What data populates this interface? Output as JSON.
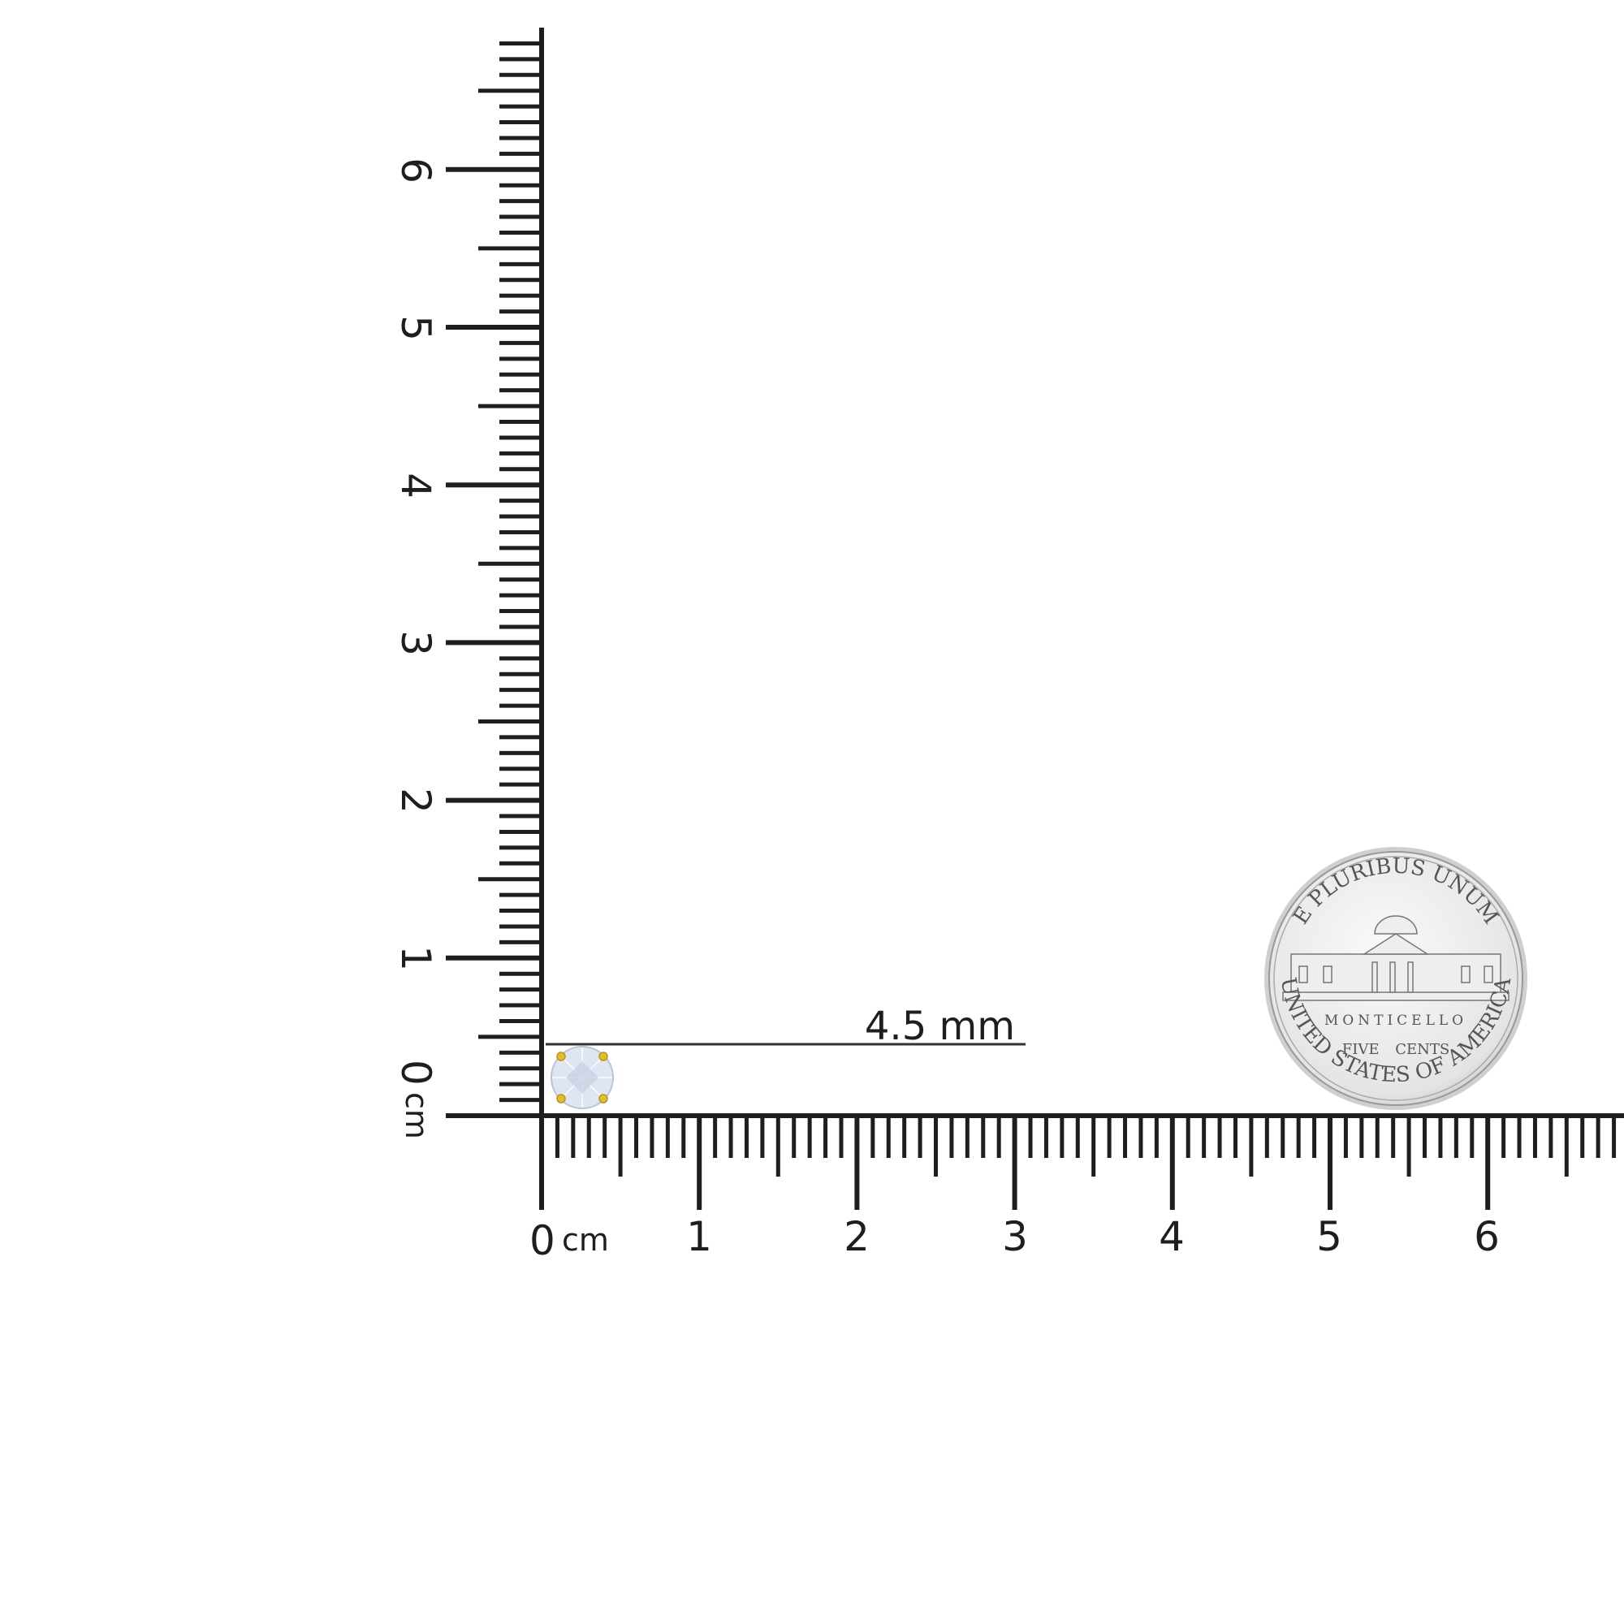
{
  "horizontal_ruler": {
    "unit_label": "cm",
    "tick_labels": [
      "0",
      "1",
      "2",
      "3",
      "4",
      "5",
      "6"
    ]
  },
  "vertical_ruler": {
    "unit_label": "cm",
    "tick_labels": [
      "0",
      "1",
      "2",
      "3",
      "4",
      "5",
      "6"
    ]
  },
  "measurement": {
    "label": "4.5 mm",
    "value_mm": 4.5
  },
  "product": {
    "icon": "round-diamond-stud-icon",
    "prong_color": "#e0c030",
    "stone_color": "#dfe6f2"
  },
  "coin": {
    "icon": "nickel-coin-icon",
    "top_text": "E PLURIBUS UNUM",
    "building_text": "MONTICELLO",
    "denomination": "FIVE CENTS",
    "bottom_text": "UNITED STATES OF AMERICA"
  },
  "colors": {
    "ruler": "#1e1e1e",
    "background": "#ffffff"
  }
}
